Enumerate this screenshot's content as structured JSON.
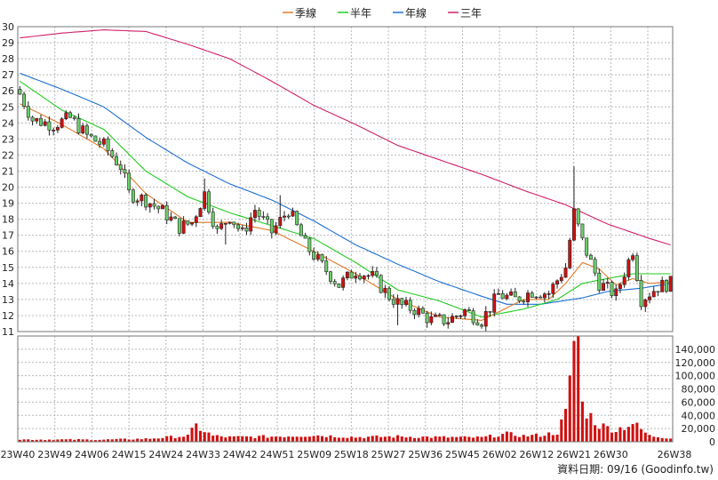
{
  "chart_data": {
    "type": "candlestick",
    "legend": [
      {
        "label": "季線",
        "color": "#e07a2a"
      },
      {
        "label": "半年",
        "color": "#22cc22"
      },
      {
        "label": "年線",
        "color": "#1e6fd0"
      },
      {
        "label": "三年",
        "color": "#d0206a"
      }
    ],
    "legend_placement": "top-center",
    "price_axis": {
      "min": 11,
      "max": 30,
      "ticks": [
        11,
        12,
        13,
        14,
        15,
        16,
        17,
        18,
        19,
        20,
        21,
        22,
        23,
        24,
        25,
        26,
        27,
        28,
        29,
        30
      ],
      "grid": true
    },
    "volume_axis": {
      "min": 0,
      "max": 160000,
      "ticks": [
        0,
        20000,
        40000,
        60000,
        80000,
        100000,
        120000,
        140000
      ],
      "tick_labels": [
        "0",
        "20,000",
        "40,000",
        "60,000",
        "80,000",
        "100,000",
        "120,000",
        "140,000"
      ],
      "grid": true
    },
    "x_tick_labels": [
      "23W40",
      "23W49",
      "24W06",
      "24W15",
      "24W24",
      "24W33",
      "24W42",
      "24W51",
      "25W09",
      "25W18",
      "25W27",
      "25W36",
      "25W45",
      "26W02",
      "26W12",
      "26W21",
      "26W30",
      "26W38"
    ],
    "week_count": 156,
    "anchors": {
      "close": [
        [
          0,
          25.8
        ],
        [
          3,
          24.2
        ],
        [
          8,
          23.9
        ],
        [
          12,
          24.3
        ],
        [
          16,
          23.2
        ],
        [
          20,
          22.6
        ],
        [
          24,
          21.3
        ],
        [
          26,
          19.6
        ],
        [
          30,
          19.2
        ],
        [
          34,
          18.5
        ],
        [
          38,
          17.5
        ],
        [
          41,
          17.8
        ],
        [
          44,
          19.6
        ],
        [
          47,
          17.2
        ],
        [
          50,
          18.2
        ],
        [
          53,
          17.1
        ],
        [
          56,
          18.6
        ],
        [
          60,
          17.2
        ],
        [
          64,
          18.6
        ],
        [
          68,
          16.4
        ],
        [
          72,
          15.1
        ],
        [
          76,
          13.9
        ],
        [
          80,
          14.8
        ],
        [
          84,
          14.4
        ],
        [
          88,
          13.2
        ],
        [
          91,
          12.6
        ],
        [
          94,
          12.4
        ],
        [
          98,
          11.7
        ],
        [
          102,
          11.7
        ],
        [
          106,
          12.3
        ],
        [
          110,
          11.7
        ],
        [
          114,
          13.3
        ],
        [
          118,
          13.0
        ],
        [
          122,
          13.5
        ],
        [
          126,
          13.4
        ],
        [
          130,
          15.0
        ],
        [
          132,
          18.4
        ],
        [
          134,
          16.6
        ],
        [
          138,
          14.0
        ],
        [
          142,
          13.3
        ],
        [
          146,
          16.1
        ],
        [
          148,
          13.0
        ],
        [
          152,
          13.8
        ],
        [
          155,
          14.0
        ]
      ],
      "ma_quarter": [
        [
          0,
          25.2
        ],
        [
          10,
          23.9
        ],
        [
          20,
          22.4
        ],
        [
          30,
          19.6
        ],
        [
          40,
          17.8
        ],
        [
          50,
          17.8
        ],
        [
          60,
          17.3
        ],
        [
          70,
          16.0
        ],
        [
          80,
          14.6
        ],
        [
          90,
          13.0
        ],
        [
          100,
          11.9
        ],
        [
          110,
          11.7
        ],
        [
          120,
          13.0
        ],
        [
          126,
          13.0
        ],
        [
          130,
          14.0
        ],
        [
          134,
          15.3
        ],
        [
          138,
          14.9
        ],
        [
          142,
          13.9
        ],
        [
          146,
          14.3
        ],
        [
          150,
          14.0
        ],
        [
          155,
          14.1
        ]
      ],
      "ma_half": [
        [
          0,
          26.6
        ],
        [
          10,
          24.8
        ],
        [
          20,
          23.6
        ],
        [
          30,
          21.0
        ],
        [
          40,
          19.4
        ],
        [
          50,
          18.4
        ],
        [
          60,
          17.6
        ],
        [
          70,
          16.8
        ],
        [
          80,
          15.3
        ],
        [
          90,
          13.6
        ],
        [
          100,
          12.9
        ],
        [
          110,
          11.9
        ],
        [
          120,
          12.4
        ],
        [
          128,
          13.0
        ],
        [
          134,
          14.0
        ],
        [
          140,
          14.3
        ],
        [
          146,
          14.6
        ],
        [
          155,
          14.6
        ]
      ],
      "ma_year": [
        [
          0,
          27.1
        ],
        [
          10,
          26.1
        ],
        [
          20,
          25.0
        ],
        [
          30,
          23.1
        ],
        [
          40,
          21.5
        ],
        [
          50,
          20.2
        ],
        [
          60,
          19.2
        ],
        [
          70,
          17.9
        ],
        [
          80,
          16.4
        ],
        [
          90,
          15.2
        ],
        [
          100,
          14.1
        ],
        [
          110,
          13.2
        ],
        [
          116,
          12.7
        ],
        [
          124,
          12.7
        ],
        [
          134,
          13.1
        ],
        [
          140,
          13.5
        ],
        [
          148,
          13.7
        ],
        [
          155,
          14.0
        ]
      ],
      "ma_3year": [
        [
          0,
          29.3
        ],
        [
          10,
          29.6
        ],
        [
          20,
          29.8
        ],
        [
          30,
          29.7
        ],
        [
          40,
          28.9
        ],
        [
          50,
          28.0
        ],
        [
          60,
          26.6
        ],
        [
          70,
          25.1
        ],
        [
          80,
          23.9
        ],
        [
          90,
          22.6
        ],
        [
          100,
          21.7
        ],
        [
          110,
          20.8
        ],
        [
          120,
          19.8
        ],
        [
          130,
          18.9
        ],
        [
          140,
          17.7
        ],
        [
          150,
          16.8
        ],
        [
          155,
          16.4
        ]
      ],
      "volume": [
        [
          0,
          3500
        ],
        [
          20,
          3200
        ],
        [
          30,
          4500
        ],
        [
          40,
          9000
        ],
        [
          42,
          24000
        ],
        [
          44,
          16000
        ],
        [
          46,
          9000
        ],
        [
          50,
          7000
        ],
        [
          60,
          8000
        ],
        [
          70,
          10000
        ],
        [
          80,
          7000
        ],
        [
          90,
          8000
        ],
        [
          100,
          7000
        ],
        [
          110,
          6500
        ],
        [
          116,
          12000
        ],
        [
          120,
          9000
        ],
        [
          124,
          10000
        ],
        [
          128,
          14000
        ],
        [
          130,
          42000
        ],
        [
          131,
          85000
        ],
        [
          132,
          155000
        ],
        [
          133,
          160000
        ],
        [
          134,
          55000
        ],
        [
          136,
          38000
        ],
        [
          138,
          25000
        ],
        [
          142,
          18000
        ],
        [
          146,
          28000
        ],
        [
          150,
          9000
        ],
        [
          155,
          6000
        ]
      ]
    }
  },
  "footer": {
    "text": "資料日期: 09/16  (Goodinfo.tw)"
  }
}
